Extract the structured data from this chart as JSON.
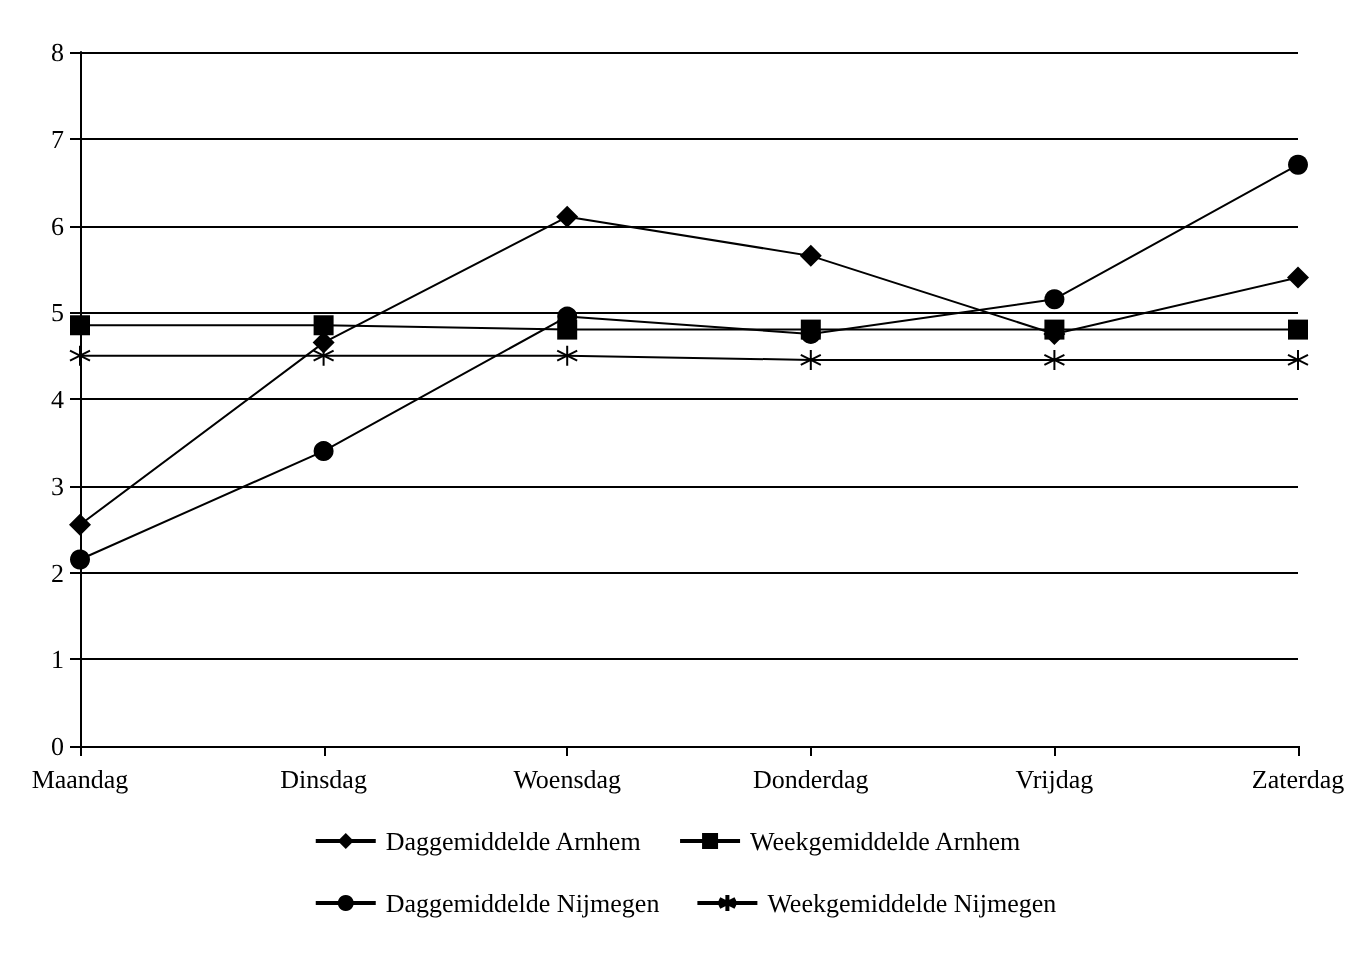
{
  "chart_data": {
    "type": "line",
    "categories": [
      "Maandag",
      "Dinsdag",
      "Woensdag",
      "Donderdag",
      "Vrijdag",
      "Zaterdag"
    ],
    "series": [
      {
        "name": "Daggemiddelde Arnhem",
        "color": "#000000",
        "marker": "diamond",
        "values": [
          2.55,
          4.65,
          6.1,
          5.65,
          4.75,
          5.4
        ]
      },
      {
        "name": "Weekgemiddelde Arnhem",
        "color": "#000000",
        "marker": "square",
        "values": [
          4.85,
          4.85,
          4.8,
          4.8,
          4.8,
          4.8
        ]
      },
      {
        "name": "Daggemiddelde Nijmegen",
        "color": "#000000",
        "marker": "circle",
        "values": [
          2.15,
          3.4,
          4.95,
          4.75,
          5.15,
          6.7
        ]
      },
      {
        "name": "Weekgemiddelde Nijmegen",
        "color": "#000000",
        "marker": "cross",
        "values": [
          4.5,
          4.5,
          4.5,
          4.45,
          4.45,
          4.45
        ]
      }
    ],
    "ylim": [
      0,
      8
    ],
    "yticks": [
      0,
      1,
      2,
      3,
      4,
      5,
      6,
      7,
      8
    ],
    "grid": "y",
    "legend": "bottom",
    "line_style": "solid"
  }
}
